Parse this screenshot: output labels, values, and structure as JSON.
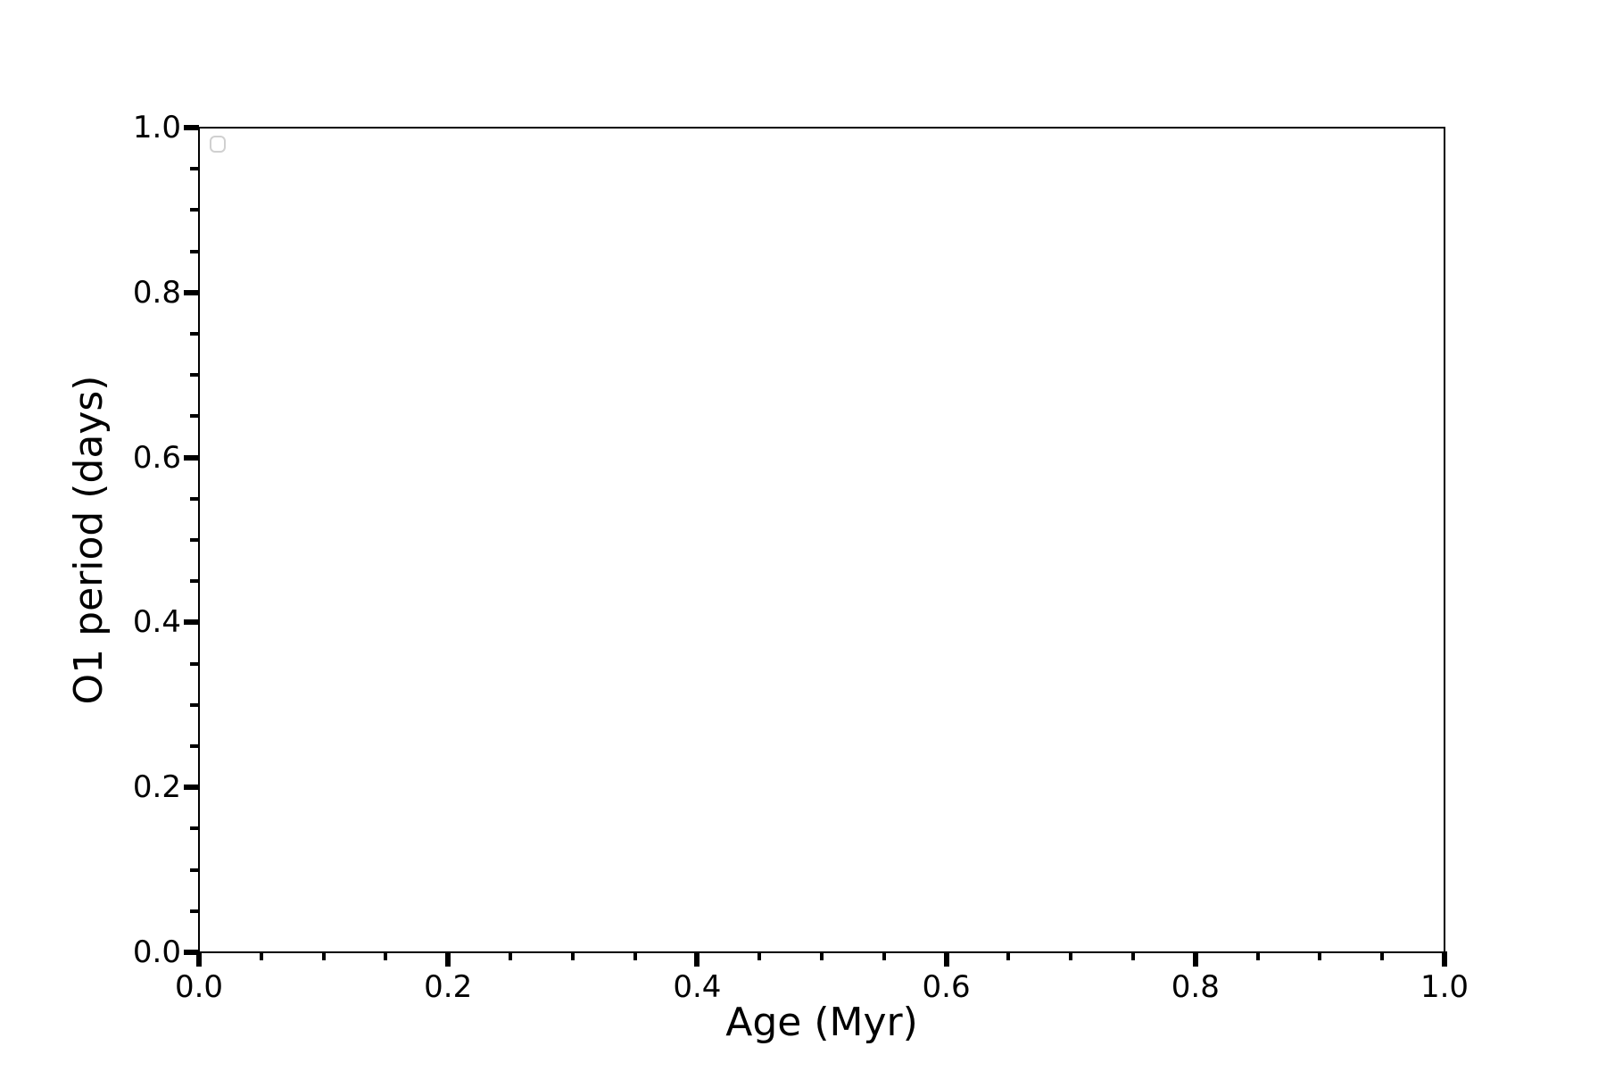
{
  "figure": {
    "background_color": "#ffffff",
    "spine_color": "#000000",
    "tick_color": "#000000",
    "legend_edge_color": "#d0d0d0"
  },
  "chart_data": {
    "type": "scatter",
    "title": "",
    "xlabel": "Age (Myr)",
    "ylabel": "O1 period (days)",
    "xlim": [
      0.0,
      1.0
    ],
    "ylim": [
      0.0,
      1.0
    ],
    "x_major_ticks": [
      0.0,
      0.2,
      0.4,
      0.6,
      0.8,
      1.0
    ],
    "x_tick_labels": [
      "0.0",
      "0.2",
      "0.4",
      "0.6",
      "0.8",
      "1.0"
    ],
    "y_major_ticks": [
      0.0,
      0.2,
      0.4,
      0.6,
      0.8,
      1.0
    ],
    "y_tick_labels": [
      "0.0",
      "0.2",
      "0.4",
      "0.6",
      "0.8",
      "1.0"
    ],
    "minor_tick_step": 0.05,
    "grid": false,
    "legend": {
      "visible": true,
      "position": "upper left",
      "entries": []
    },
    "series": []
  }
}
